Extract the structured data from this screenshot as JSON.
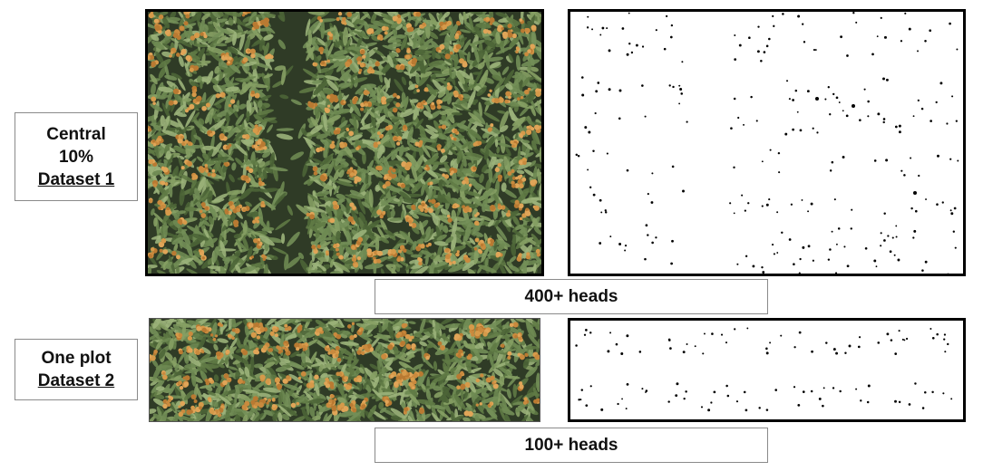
{
  "rows": [
    {
      "id": "dataset1",
      "label_line1": "Central",
      "label_line2": "10%",
      "label_line3": "Dataset 1",
      "caption": "400+ heads"
    },
    {
      "id": "dataset2",
      "label_line1": "One plot",
      "label_line2": "Dataset 2",
      "caption": "100+ heads"
    }
  ],
  "colors": {
    "frame": "#000000",
    "label_border": "#8a8a8a",
    "foliage": "#5f7a45",
    "head": "#c98a3e",
    "dot": "#000000"
  }
}
